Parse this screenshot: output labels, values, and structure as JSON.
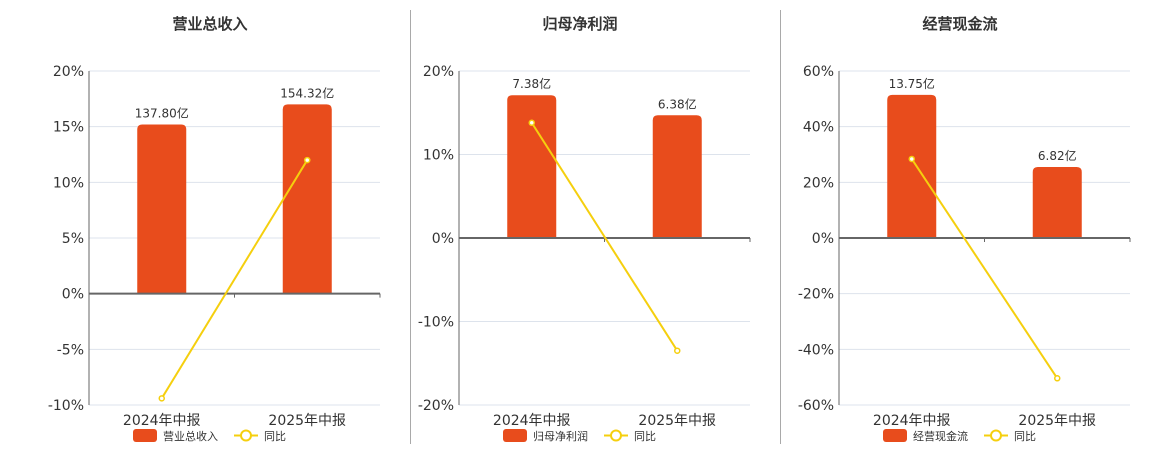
{
  "colors": {
    "bar": "#e84c1c",
    "line": "#f5cf0e",
    "grid": "#dde3ec",
    "axis": "#666666",
    "text": "#333333",
    "divider": "#a9a9a9"
  },
  "legend": {
    "yoy_label": "同比"
  },
  "chart_data": [
    {
      "type": "bar",
      "title": "营业总收入",
      "categories": [
        "2024年中报",
        "2025年中报"
      ],
      "series": [
        {
          "name": "营业总收入",
          "type": "bar",
          "values": [
            15.2,
            17.0
          ],
          "labels": [
            "137.80亿",
            "154.32亿"
          ]
        },
        {
          "name": "同比",
          "type": "line",
          "values": [
            -9.4,
            12.0
          ]
        }
      ],
      "yticks": [
        "20%",
        "15%",
        "10%",
        "5%",
        "0%",
        "-5%",
        "-10%"
      ],
      "ylim": [
        -10,
        20
      ],
      "xlabel": "",
      "ylabel": "",
      "grid": true,
      "legend_position": "bottom"
    },
    {
      "type": "bar",
      "title": "归母净利润",
      "categories": [
        "2024年中报",
        "2025年中报"
      ],
      "series": [
        {
          "name": "归母净利润",
          "type": "bar",
          "values": [
            17.1,
            14.7
          ],
          "labels": [
            "7.38亿",
            "6.38亿"
          ]
        },
        {
          "name": "同比",
          "type": "line",
          "values": [
            13.8,
            -13.5
          ]
        }
      ],
      "yticks": [
        "20%",
        "10%",
        "0%",
        "-10%",
        "-20%"
      ],
      "ylim": [
        -20,
        20
      ],
      "xlabel": "",
      "ylabel": "",
      "grid": true,
      "legend_position": "bottom"
    },
    {
      "type": "bar",
      "title": "经营现金流",
      "categories": [
        "2024年中报",
        "2025年中报"
      ],
      "series": [
        {
          "name": "经营现金流",
          "type": "bar",
          "values": [
            51.4,
            25.5
          ],
          "labels": [
            "13.75亿",
            "6.82亿"
          ]
        },
        {
          "name": "同比",
          "type": "line",
          "values": [
            28.4,
            -50.4
          ]
        }
      ],
      "yticks": [
        "60%",
        "40%",
        "20%",
        "0%",
        "-20%",
        "-40%",
        "-60%"
      ],
      "ylim": [
        -60,
        60
      ],
      "xlabel": "",
      "ylabel": "",
      "grid": true,
      "legend_position": "bottom"
    }
  ]
}
